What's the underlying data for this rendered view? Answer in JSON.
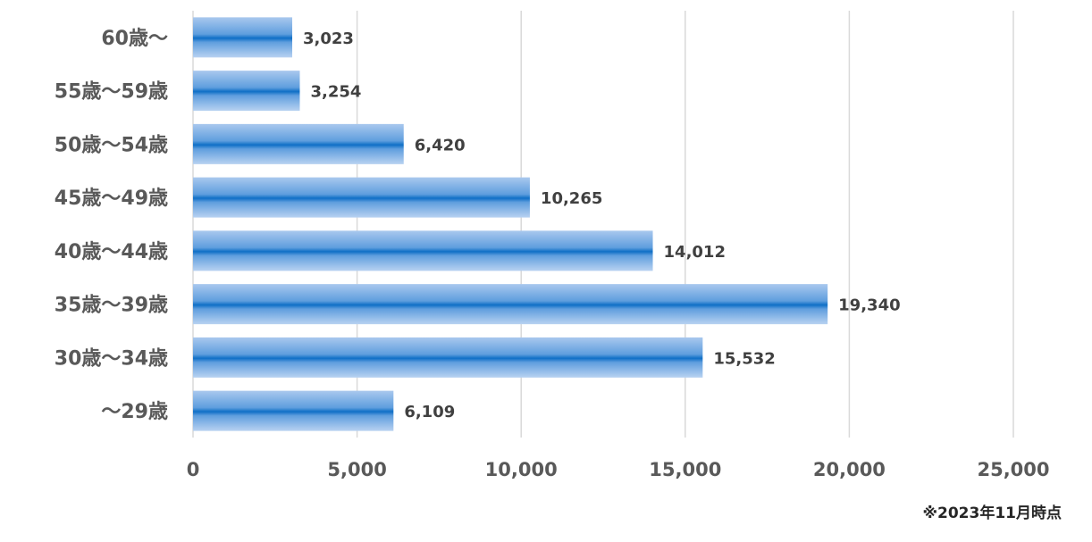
{
  "chart_data": {
    "type": "bar",
    "orientation": "horizontal",
    "categories": [
      "60歳～",
      "55歳～59歳",
      "50歳～54歳",
      "45歳～49歳",
      "40歳～44歳",
      "35歳～39歳",
      "30歳～34歳",
      "～29歳"
    ],
    "values": [
      3023,
      3254,
      6420,
      10265,
      14012,
      19340,
      15532,
      6109
    ],
    "value_labels": [
      "3,023",
      "3,254",
      "6,420",
      "10,265",
      "14,012",
      "19,340",
      "15,532",
      "6,109"
    ],
    "x_ticks": [
      0,
      5000,
      10000,
      15000,
      20000,
      25000
    ],
    "x_tick_labels": [
      "0",
      "5,000",
      "10,000",
      "15,000",
      "20,000",
      "25,000"
    ],
    "xlim": [
      0,
      25000
    ],
    "grid": "vertical",
    "legend": "none",
    "title": "",
    "xlabel": "",
    "ylabel": "",
    "colors": {
      "bar_center": "#0f6fc6",
      "bar_edge": "#a9c8ee",
      "grid": "#d9d9d9",
      "text": "#595959"
    }
  },
  "note": "※2023年11月時点"
}
